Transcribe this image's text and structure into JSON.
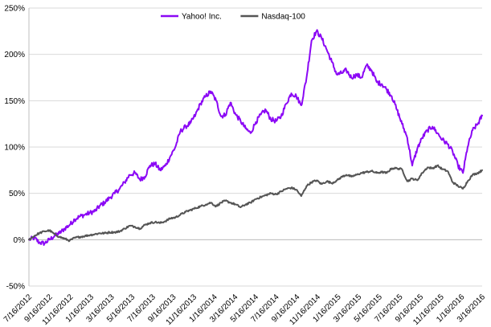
{
  "chart_data": {
    "type": "line",
    "title": "",
    "xlabel": "",
    "ylabel": "",
    "ylim": [
      -50,
      250
    ],
    "y_tick_labels": [
      "-50%",
      "0%",
      "50%",
      "100%",
      "150%",
      "200%",
      "250%"
    ],
    "y_ticks": [
      -50,
      0,
      50,
      100,
      150,
      200,
      250
    ],
    "x_tick_labels": [
      "7/16/2012",
      "9/16/2012",
      "11/16/2012",
      "1/16/2013",
      "3/16/2013",
      "5/16/2013",
      "7/16/2013",
      "9/16/2013",
      "11/16/2013",
      "1/16/2014",
      "3/16/2014",
      "5/16/2014",
      "7/16/2014",
      "9/16/2014",
      "11/16/2014",
      "1/16/2015",
      "3/16/2015",
      "5/16/2015",
      "7/16/2015",
      "9/16/2015",
      "11/16/2015",
      "1/16/2016",
      "3/16/2016"
    ],
    "xlim": [
      "2012-07-16",
      "2016-04-14"
    ],
    "grid": "horizontal",
    "legend_position": "top-left",
    "series": [
      {
        "name": "Yahoo! Inc.",
        "color": "#8b08f5",
        "points": [
          [
            "2012-07-16",
            0
          ],
          [
            "2012-08-01",
            2
          ],
          [
            "2012-08-16",
            -3
          ],
          [
            "2012-09-01",
            -4
          ],
          [
            "2012-09-16",
            0
          ],
          [
            "2012-10-01",
            4
          ],
          [
            "2012-10-16",
            7
          ],
          [
            "2012-11-01",
            12
          ],
          [
            "2012-11-16",
            16
          ],
          [
            "2012-12-01",
            22
          ],
          [
            "2012-12-16",
            25
          ],
          [
            "2013-01-01",
            27
          ],
          [
            "2013-01-16",
            29
          ],
          [
            "2013-02-01",
            31
          ],
          [
            "2013-02-16",
            37
          ],
          [
            "2013-03-01",
            40
          ],
          [
            "2013-03-16",
            45
          ],
          [
            "2013-04-01",
            50
          ],
          [
            "2013-04-16",
            55
          ],
          [
            "2013-05-01",
            62
          ],
          [
            "2013-05-16",
            70
          ],
          [
            "2013-06-01",
            72
          ],
          [
            "2013-06-16",
            65
          ],
          [
            "2013-07-01",
            68
          ],
          [
            "2013-07-16",
            80
          ],
          [
            "2013-08-01",
            82
          ],
          [
            "2013-08-16",
            75
          ],
          [
            "2013-09-01",
            80
          ],
          [
            "2013-09-16",
            90
          ],
          [
            "2013-10-01",
            100
          ],
          [
            "2013-10-16",
            117
          ],
          [
            "2013-11-01",
            122
          ],
          [
            "2013-11-16",
            126
          ],
          [
            "2013-12-01",
            135
          ],
          [
            "2013-12-16",
            147
          ],
          [
            "2014-01-01",
            155
          ],
          [
            "2014-01-16",
            160
          ],
          [
            "2014-02-01",
            150
          ],
          [
            "2014-02-16",
            133
          ],
          [
            "2014-03-01",
            135
          ],
          [
            "2014-03-16",
            148
          ],
          [
            "2014-04-01",
            135
          ],
          [
            "2014-04-16",
            128
          ],
          [
            "2014-05-01",
            120
          ],
          [
            "2014-05-16",
            115
          ],
          [
            "2014-06-01",
            127
          ],
          [
            "2014-06-16",
            135
          ],
          [
            "2014-07-01",
            140
          ],
          [
            "2014-07-16",
            130
          ],
          [
            "2014-08-01",
            128
          ],
          [
            "2014-08-16",
            133
          ],
          [
            "2014-09-01",
            147
          ],
          [
            "2014-09-16",
            158
          ],
          [
            "2014-10-01",
            155
          ],
          [
            "2014-10-16",
            145
          ],
          [
            "2014-11-01",
            175
          ],
          [
            "2014-11-16",
            215
          ],
          [
            "2014-12-01",
            225
          ],
          [
            "2014-12-16",
            218
          ],
          [
            "2015-01-01",
            205
          ],
          [
            "2015-01-16",
            192
          ],
          [
            "2015-02-01",
            178
          ],
          [
            "2015-02-16",
            180
          ],
          [
            "2015-03-01",
            183
          ],
          [
            "2015-03-16",
            175
          ],
          [
            "2015-04-01",
            178
          ],
          [
            "2015-04-16",
            175
          ],
          [
            "2015-05-01",
            188
          ],
          [
            "2015-05-16",
            183
          ],
          [
            "2015-06-01",
            170
          ],
          [
            "2015-06-16",
            168
          ],
          [
            "2015-07-01",
            162
          ],
          [
            "2015-07-16",
            155
          ],
          [
            "2015-08-01",
            140
          ],
          [
            "2015-08-16",
            125
          ],
          [
            "2015-09-01",
            110
          ],
          [
            "2015-09-16",
            80
          ],
          [
            "2015-10-01",
            98
          ],
          [
            "2015-10-16",
            110
          ],
          [
            "2015-11-01",
            118
          ],
          [
            "2015-11-16",
            122
          ],
          [
            "2015-12-01",
            115
          ],
          [
            "2015-12-16",
            108
          ],
          [
            "2016-01-01",
            103
          ],
          [
            "2016-01-16",
            95
          ],
          [
            "2016-02-01",
            80
          ],
          [
            "2016-02-16",
            72
          ],
          [
            "2016-03-01",
            100
          ],
          [
            "2016-03-16",
            118
          ],
          [
            "2016-04-01",
            125
          ],
          [
            "2016-04-14",
            134
          ]
        ]
      },
      {
        "name": "Nasdaq-100",
        "color": "#555555",
        "points": [
          [
            "2012-07-16",
            0
          ],
          [
            "2012-08-01",
            4
          ],
          [
            "2012-08-16",
            7
          ],
          [
            "2012-09-01",
            9
          ],
          [
            "2012-09-16",
            10
          ],
          [
            "2012-10-01",
            6
          ],
          [
            "2012-10-16",
            3
          ],
          [
            "2012-11-01",
            1
          ],
          [
            "2012-11-16",
            -1
          ],
          [
            "2012-12-01",
            2
          ],
          [
            "2012-12-16",
            3
          ],
          [
            "2013-01-01",
            4
          ],
          [
            "2013-01-16",
            5
          ],
          [
            "2013-02-01",
            6
          ],
          [
            "2013-02-16",
            7
          ],
          [
            "2013-03-01",
            7
          ],
          [
            "2013-03-16",
            8
          ],
          [
            "2013-04-01",
            8
          ],
          [
            "2013-04-16",
            9
          ],
          [
            "2013-05-01",
            12
          ],
          [
            "2013-05-16",
            15
          ],
          [
            "2013-06-01",
            14
          ],
          [
            "2013-06-16",
            12
          ],
          [
            "2013-07-01",
            16
          ],
          [
            "2013-07-16",
            18
          ],
          [
            "2013-08-01",
            19
          ],
          [
            "2013-08-16",
            18
          ],
          [
            "2013-09-01",
            20
          ],
          [
            "2013-09-16",
            23
          ],
          [
            "2013-10-01",
            24
          ],
          [
            "2013-10-16",
            27
          ],
          [
            "2013-11-01",
            30
          ],
          [
            "2013-11-16",
            32
          ],
          [
            "2013-12-01",
            34
          ],
          [
            "2013-12-16",
            36
          ],
          [
            "2014-01-01",
            38
          ],
          [
            "2014-01-16",
            40
          ],
          [
            "2014-02-01",
            36
          ],
          [
            "2014-02-16",
            40
          ],
          [
            "2014-03-01",
            42
          ],
          [
            "2014-03-16",
            40
          ],
          [
            "2014-04-01",
            38
          ],
          [
            "2014-04-16",
            35
          ],
          [
            "2014-05-01",
            38
          ],
          [
            "2014-05-16",
            40
          ],
          [
            "2014-06-01",
            44
          ],
          [
            "2014-06-16",
            46
          ],
          [
            "2014-07-01",
            48
          ],
          [
            "2014-07-16",
            50
          ],
          [
            "2014-08-01",
            49
          ],
          [
            "2014-08-16",
            52
          ],
          [
            "2014-09-01",
            55
          ],
          [
            "2014-09-16",
            56
          ],
          [
            "2014-10-01",
            54
          ],
          [
            "2014-10-16",
            47
          ],
          [
            "2014-11-01",
            58
          ],
          [
            "2014-11-16",
            62
          ],
          [
            "2014-12-01",
            64
          ],
          [
            "2014-12-16",
            60
          ],
          [
            "2015-01-01",
            63
          ],
          [
            "2015-01-16",
            61
          ],
          [
            "2015-02-01",
            64
          ],
          [
            "2015-02-16",
            68
          ],
          [
            "2015-03-01",
            70
          ],
          [
            "2015-03-16",
            68
          ],
          [
            "2015-04-01",
            70
          ],
          [
            "2015-04-16",
            72
          ],
          [
            "2015-05-01",
            73
          ],
          [
            "2015-05-16",
            74
          ],
          [
            "2015-06-01",
            72
          ],
          [
            "2015-06-16",
            73
          ],
          [
            "2015-07-01",
            72
          ],
          [
            "2015-07-16",
            77
          ],
          [
            "2015-08-01",
            77
          ],
          [
            "2015-08-16",
            76
          ],
          [
            "2015-09-01",
            63
          ],
          [
            "2015-09-16",
            66
          ],
          [
            "2015-10-01",
            64
          ],
          [
            "2015-10-16",
            72
          ],
          [
            "2015-11-01",
            78
          ],
          [
            "2015-11-16",
            77
          ],
          [
            "2015-12-01",
            80
          ],
          [
            "2015-12-16",
            76
          ],
          [
            "2016-01-01",
            74
          ],
          [
            "2016-01-16",
            62
          ],
          [
            "2016-02-01",
            58
          ],
          [
            "2016-02-16",
            55
          ],
          [
            "2016-03-01",
            63
          ],
          [
            "2016-03-16",
            70
          ],
          [
            "2016-04-01",
            72
          ],
          [
            "2016-04-14",
            75
          ]
        ]
      }
    ]
  }
}
